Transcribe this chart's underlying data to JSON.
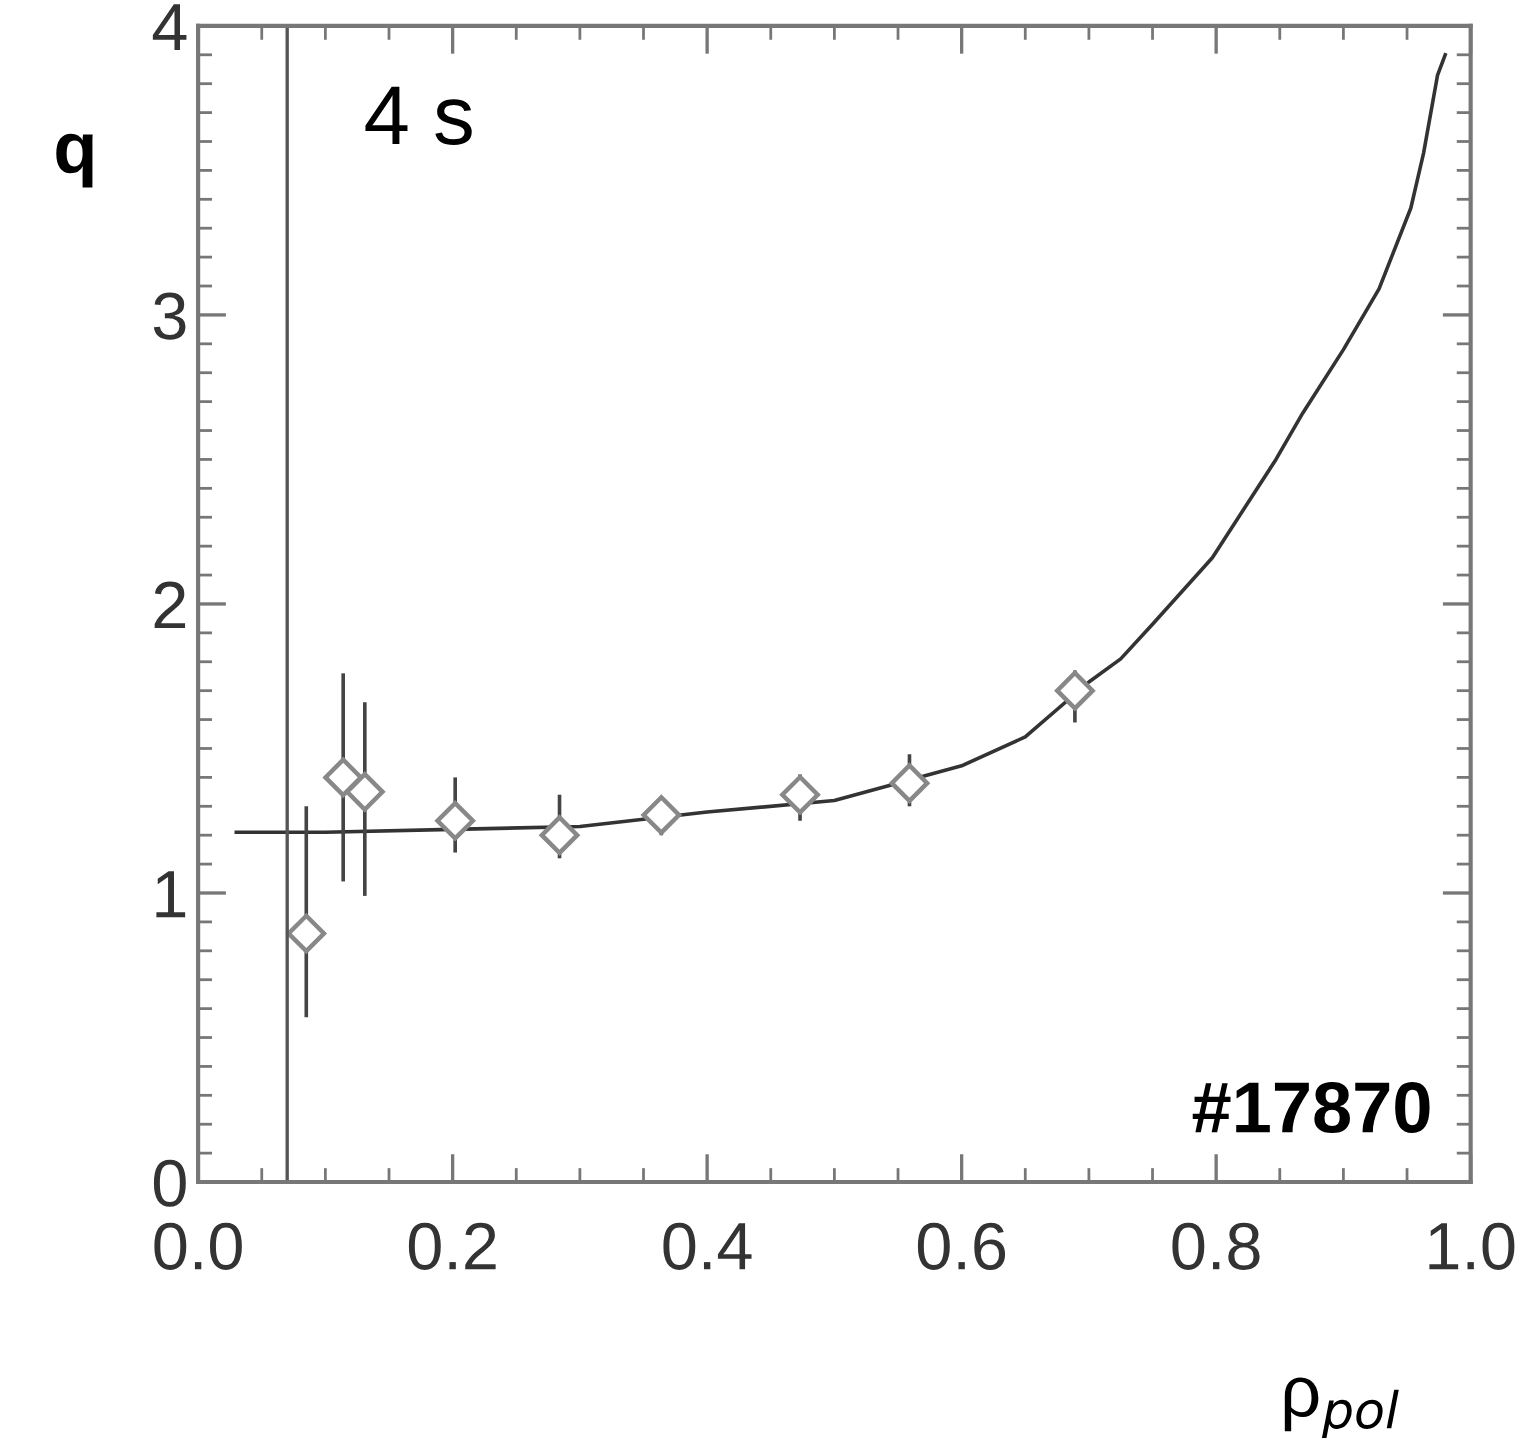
{
  "chart_data": {
    "type": "scatter",
    "xlabel": "ρ$_{pol}$",
    "ylabel": "q",
    "xlim": [
      0,
      1
    ],
    "ylim": [
      0,
      4
    ],
    "xticks": [
      {
        "value": 0,
        "label": "0.0"
      },
      0.2,
      0.4,
      0.6,
      0.8,
      {
        "value": 1,
        "label": "1.0"
      }
    ],
    "yticks": [
      0,
      1,
      2,
      3,
      4
    ],
    "grid": false,
    "legend": false,
    "annotations": [
      "4 s",
      "#17870"
    ],
    "ref_lines": [
      {
        "axis": "x",
        "value": 0.07,
        "color": "#555555"
      }
    ],
    "series": [
      {
        "type": "line",
        "color": "#333333",
        "marker": "none",
        "line_style": "solid",
        "x": [
          0.03,
          0.1,
          0.2,
          0.3,
          0.4,
          0.5,
          0.6,
          0.65,
          0.7,
          0.725,
          0.75,
          0.797,
          0.847,
          0.868,
          0.9,
          0.928,
          0.953,
          0.963,
          0.974,
          0.98
        ],
        "values": [
          1.21,
          1.21,
          1.22,
          1.23,
          1.28,
          1.32,
          1.44,
          1.54,
          1.73,
          1.81,
          1.93,
          2.16,
          2.5,
          2.66,
          2.88,
          3.09,
          3.37,
          3.56,
          3.83,
          3.9
        ]
      },
      {
        "color": "#888888",
        "marker": "diamond",
        "x": [
          0.085,
          0.114,
          0.131,
          0.202,
          0.284,
          0.364,
          0.473,
          0.559,
          0.689
        ],
        "values": [
          0.86,
          1.4,
          1.35,
          1.25,
          1.2,
          1.27,
          1.34,
          1.38,
          1.7
        ],
        "errors": [
          [
            0.57,
            1.3
          ],
          [
            1.04,
            1.76
          ],
          [
            0.99,
            1.66
          ],
          [
            1.14,
            1.4
          ],
          [
            1.12,
            1.34
          ],
          [
            1.2,
            1.33
          ],
          [
            1.25,
            1.41
          ],
          [
            1.3,
            1.48
          ],
          [
            1.59,
            1.77
          ]
        ]
      }
    ]
  }
}
